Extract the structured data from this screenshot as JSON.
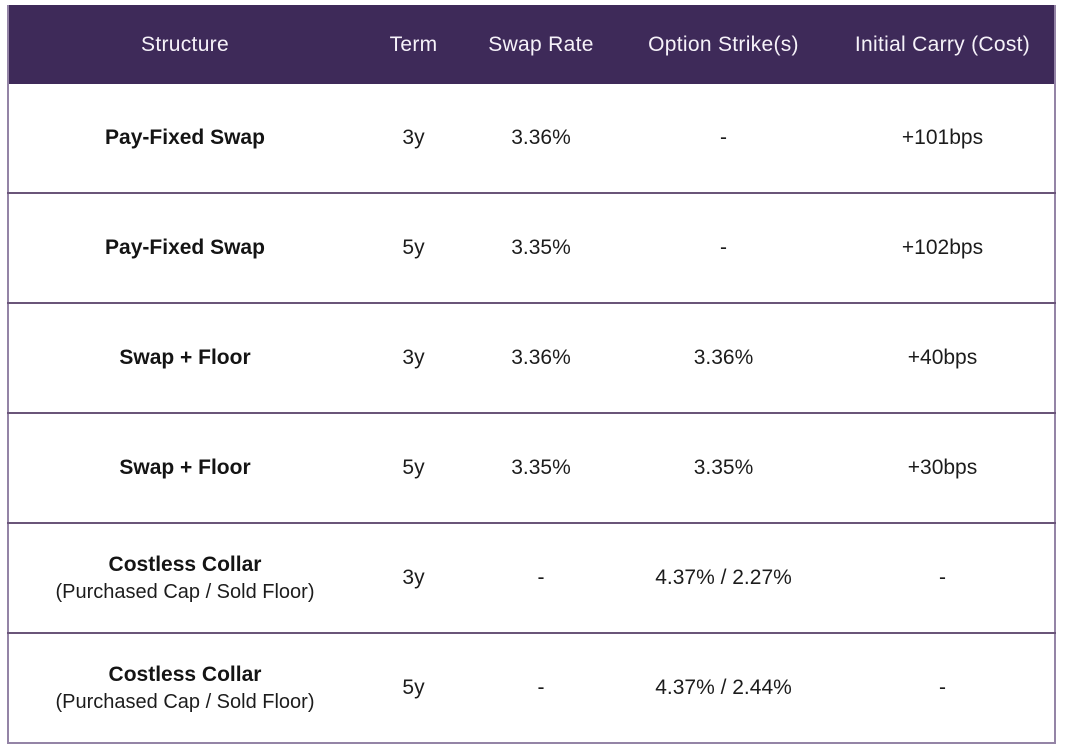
{
  "chart_data": {
    "type": "table",
    "columns": [
      "Structure",
      "Term",
      "Swap Rate",
      "Option Strike(s)",
      "Initial Carry (Cost)"
    ],
    "rows": [
      [
        "Pay-Fixed Swap",
        "3y",
        "3.36%",
        "-",
        "+101bps"
      ],
      [
        "Pay-Fixed Swap",
        "5y",
        "3.35%",
        "-",
        "+102bps"
      ],
      [
        "Swap + Floor",
        "3y",
        "3.36%",
        "3.36%",
        "+40bps"
      ],
      [
        "Swap + Floor",
        "5y",
        "3.35%",
        "3.35%",
        "+30bps"
      ],
      [
        "Costless Collar (Purchased Cap / Sold Floor)",
        "3y",
        "-",
        "4.37% / 2.27%",
        "-"
      ],
      [
        "Costless Collar (Purchased Cap / Sold Floor)",
        "5y",
        "-",
        "4.37% / 2.44%",
        "-"
      ]
    ]
  },
  "table": {
    "headers": {
      "structure": "Structure",
      "term": "Term",
      "swap_rate": "Swap Rate",
      "option_strikes": "Option Strike(s)",
      "initial_carry": "Initial Carry (Cost)"
    },
    "rows": [
      {
        "structure": "Pay-Fixed Swap",
        "structure_sub": "",
        "term": "3y",
        "swap_rate": "3.36%",
        "option_strikes": "-",
        "initial_carry": "+101bps"
      },
      {
        "structure": "Pay-Fixed Swap",
        "structure_sub": "",
        "term": "5y",
        "swap_rate": "3.35%",
        "option_strikes": "-",
        "initial_carry": "+102bps"
      },
      {
        "structure": "Swap + Floor",
        "structure_sub": "",
        "term": "3y",
        "swap_rate": "3.36%",
        "option_strikes": "3.36%",
        "initial_carry": "+40bps"
      },
      {
        "structure": "Swap + Floor",
        "structure_sub": "",
        "term": "5y",
        "swap_rate": "3.35%",
        "option_strikes": "3.35%",
        "initial_carry": "+30bps"
      },
      {
        "structure": "Costless Collar",
        "structure_sub": "(Purchased Cap / Sold Floor)",
        "term": "3y",
        "swap_rate": "-",
        "option_strikes": "4.37% / 2.27%",
        "initial_carry": "-"
      },
      {
        "structure": "Costless Collar",
        "structure_sub": "(Purchased Cap / Sold Floor)",
        "term": "5y",
        "swap_rate": "-",
        "option_strikes": "4.37% / 2.44%",
        "initial_carry": "-"
      }
    ]
  },
  "colors": {
    "header_bg": "#3e2a59",
    "header_text": "#f6f2f9",
    "row_divider": "#6a5579",
    "outer_border": "#9484a6",
    "body_text": "#1c1c1c"
  }
}
